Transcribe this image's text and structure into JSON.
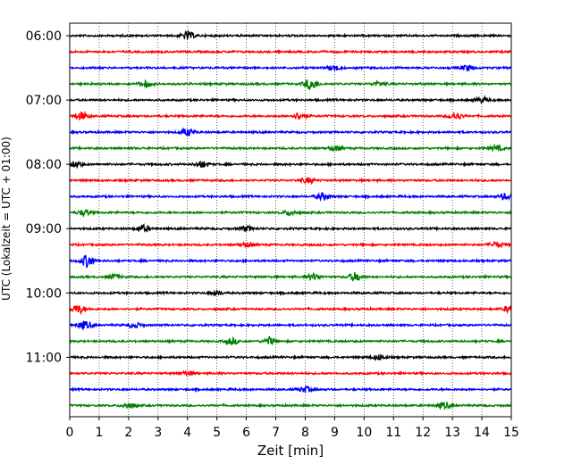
{
  "chart_data": {
    "type": "line",
    "title": "",
    "xlabel": "Zeit  [min]",
    "ylabel": "UTC (Lokalzeit = UTC + 01:00)",
    "xlim": [
      0,
      15
    ],
    "xticks": [
      0,
      1,
      2,
      3,
      4,
      5,
      6,
      7,
      8,
      9,
      10,
      11,
      12,
      13,
      14,
      15
    ],
    "xgrid": "dotted",
    "ytick_labels": [
      "06:00",
      "07:00",
      "08:00",
      "09:00",
      "10:00",
      "11:00"
    ],
    "trace_interval_min": 15,
    "traces_count": 24,
    "color_cycle": [
      "#000000",
      "#ff0000",
      "#0000ff",
      "#008000"
    ],
    "traces": [
      {
        "start": "06:00",
        "color": "#000000",
        "events": [
          [
            4.0,
            0.45
          ]
        ]
      },
      {
        "start": "06:15",
        "color": "#ff0000",
        "events": []
      },
      {
        "start": "06:30",
        "color": "#0000ff",
        "events": [
          [
            9.0,
            0.3
          ],
          [
            13.5,
            0.3
          ]
        ]
      },
      {
        "start": "06:45",
        "color": "#008000",
        "events": [
          [
            2.6,
            0.35
          ],
          [
            8.2,
            0.7
          ],
          [
            10.5,
            0.25
          ]
        ]
      },
      {
        "start": "07:00",
        "color": "#000000",
        "events": [
          [
            14.0,
            0.3
          ]
        ]
      },
      {
        "start": "07:15",
        "color": "#ff0000",
        "events": [
          [
            0.4,
            0.45
          ],
          [
            7.8,
            0.4
          ],
          [
            13.1,
            0.45
          ]
        ]
      },
      {
        "start": "07:30",
        "color": "#0000ff",
        "events": [
          [
            4.0,
            0.4
          ]
        ]
      },
      {
        "start": "07:45",
        "color": "#008000",
        "events": [
          [
            9.0,
            0.3
          ],
          [
            14.5,
            0.3
          ]
        ]
      },
      {
        "start": "08:00",
        "color": "#000000",
        "events": [
          [
            0.2,
            0.35
          ],
          [
            4.5,
            0.35
          ]
        ]
      },
      {
        "start": "08:15",
        "color": "#ff0000",
        "events": [
          [
            8.1,
            0.3
          ]
        ]
      },
      {
        "start": "08:30",
        "color": "#0000ff",
        "events": [
          [
            8.6,
            0.4
          ],
          [
            14.8,
            0.35
          ]
        ]
      },
      {
        "start": "08:45",
        "color": "#008000",
        "events": [
          [
            0.5,
            0.35
          ],
          [
            7.5,
            0.3
          ]
        ]
      },
      {
        "start": "09:00",
        "color": "#000000",
        "events": [
          [
            2.5,
            0.4
          ],
          [
            6.0,
            0.3
          ]
        ]
      },
      {
        "start": "09:15",
        "color": "#ff0000",
        "events": [
          [
            6.0,
            0.25
          ],
          [
            14.5,
            0.3
          ]
        ]
      },
      {
        "start": "09:30",
        "color": "#0000ff",
        "events": [
          [
            0.6,
            0.75
          ]
        ]
      },
      {
        "start": "09:45",
        "color": "#008000",
        "events": [
          [
            1.5,
            0.3
          ],
          [
            8.3,
            0.35
          ],
          [
            9.7,
            0.5
          ]
        ]
      },
      {
        "start": "10:00",
        "color": "#000000",
        "events": [
          [
            5.0,
            0.25
          ]
        ]
      },
      {
        "start": "10:15",
        "color": "#ff0000",
        "events": [
          [
            0.3,
            0.5
          ],
          [
            15.0,
            0.5
          ]
        ]
      },
      {
        "start": "10:30",
        "color": "#0000ff",
        "events": [
          [
            0.5,
            0.45
          ],
          [
            2.2,
            0.3
          ]
        ]
      },
      {
        "start": "10:45",
        "color": "#008000",
        "events": [
          [
            5.5,
            0.35
          ],
          [
            6.8,
            0.45
          ]
        ]
      },
      {
        "start": "11:00",
        "color": "#000000",
        "events": [
          [
            10.5,
            0.3
          ]
        ]
      },
      {
        "start": "11:15",
        "color": "#ff0000",
        "events": [
          [
            4.0,
            0.25
          ]
        ]
      },
      {
        "start": "11:30",
        "color": "#0000ff",
        "events": [
          [
            8.0,
            0.3
          ]
        ]
      },
      {
        "start": "11:45",
        "color": "#008000",
        "events": [
          [
            2.0,
            0.3
          ],
          [
            12.7,
            0.35
          ]
        ]
      }
    ]
  }
}
